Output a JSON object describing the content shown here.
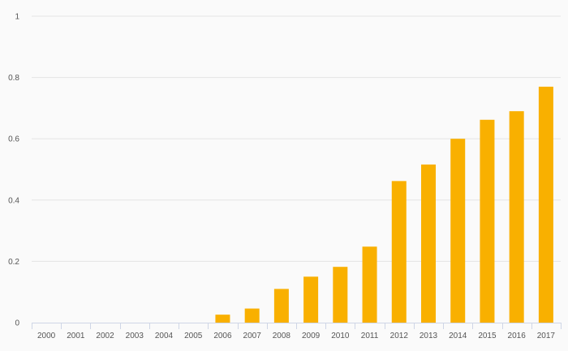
{
  "chart_data": {
    "type": "bar",
    "title": "",
    "xlabel": "",
    "ylabel": "",
    "categories": [
      "2000",
      "2001",
      "2002",
      "2003",
      "2004",
      "2005",
      "2006",
      "2007",
      "2008",
      "2009",
      "2010",
      "2011",
      "2012",
      "2013",
      "2014",
      "2015",
      "2016",
      "2017"
    ],
    "values": [
      0,
      0,
      0,
      0,
      0,
      0,
      0.026,
      0.046,
      0.11,
      0.15,
      0.182,
      0.248,
      0.462,
      0.516,
      0.6,
      0.662,
      0.69,
      0.77
    ],
    "ylim": [
      0,
      1
    ],
    "yticks": [
      "0",
      "0.2",
      "0.4",
      "0.6",
      "0.8",
      "1"
    ],
    "ytick_values": [
      0,
      0.2,
      0.4,
      0.6,
      0.8,
      1
    ],
    "grid": true,
    "legend": "none",
    "colors": {
      "bar": "#f9b000",
      "grid": "#e4e4e4",
      "axis": "#cfd6e6",
      "text": "#555555",
      "background": "#fafafa"
    }
  }
}
